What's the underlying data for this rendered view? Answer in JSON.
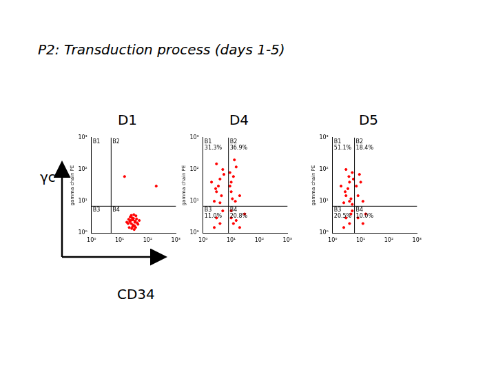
{
  "title": "P2: Transduction process (days 1-5)",
  "axis_arrows": {
    "y_label": "γc",
    "x_label": "CD34"
  },
  "chart_data": [
    {
      "type": "scatter",
      "title": "D1",
      "y_label": "gamma chain PE",
      "log": true,
      "grid": false,
      "color": "#ff0000",
      "marker": "circle",
      "xlim": [
        1,
        1000
      ],
      "ylim": [
        1,
        1000
      ],
      "xticks": [
        {
          "value": 1,
          "label": "10⁰"
        },
        {
          "value": 10,
          "label": "10¹"
        },
        {
          "value": 100,
          "label": "10²"
        },
        {
          "value": 1000,
          "label": "10³"
        }
      ],
      "yticks": [
        {
          "value": 1,
          "label": "10⁰"
        },
        {
          "value": 10,
          "label": "10¹"
        },
        {
          "value": 100,
          "label": "10²"
        },
        {
          "value": 1000,
          "label": "10³"
        }
      ],
      "gates": {
        "x": 5,
        "y": 7
      },
      "quadrants": [
        {
          "name": "B1"
        },
        {
          "name": "B2"
        },
        {
          "name": "B3"
        },
        {
          "name": "B4"
        }
      ],
      "x": [
        20,
        25,
        30,
        35,
        28,
        22,
        40,
        33,
        26,
        38,
        30,
        24,
        45,
        29,
        36,
        21,
        32,
        27,
        42,
        34,
        23,
        31,
        37,
        26,
        50,
        18,
        200,
        15
      ],
      "y": [
        2,
        2.5,
        1.8,
        2.2,
        3,
        1.5,
        2.8,
        1.3,
        2,
        3.5,
        2.6,
        3.2,
        1.9,
        1.6,
        2.4,
        2.7,
        3.8,
        1.4,
        2.1,
        1.7,
        2.3,
        2.9,
        1.5,
        3.6,
        2.5,
        2.2,
        30,
        60
      ]
    },
    {
      "type": "scatter",
      "title": "D4",
      "y_label": "gamma chain PE",
      "log": true,
      "grid": false,
      "color": "#ff0000",
      "marker": "circle",
      "xlim": [
        1,
        1000
      ],
      "ylim": [
        1,
        1000
      ],
      "xticks": [
        {
          "value": 1,
          "label": "10⁰"
        },
        {
          "value": 10,
          "label": "10¹"
        },
        {
          "value": 100,
          "label": "10²"
        },
        {
          "value": 1000,
          "label": "10³"
        }
      ],
      "yticks": [
        {
          "value": 1,
          "label": "10⁰"
        },
        {
          "value": 10,
          "label": "10¹"
        },
        {
          "value": 100,
          "label": "10²"
        },
        {
          "value": 1000,
          "label": "10³"
        }
      ],
      "gates": {
        "x": 8,
        "y": 7
      },
      "quadrants": [
        {
          "name": "B1",
          "value": 31.3,
          "label": "31.3%"
        },
        {
          "name": "B2",
          "value": 36.9,
          "label": "36.9%"
        },
        {
          "name": "B3",
          "value": 11.0,
          "label": "11.0%"
        },
        {
          "name": "B4",
          "value": 20.8,
          "label": "20.8%"
        }
      ],
      "x": [
        3,
        4,
        2.5,
        5,
        3.5,
        4.5,
        2,
        5.5,
        3,
        4,
        2.8,
        10,
        12,
        9,
        15,
        11,
        10,
        20,
        14,
        13,
        9,
        3,
        4,
        5,
        2.5,
        10,
        12,
        20,
        30,
        15,
        10
      ],
      "y": [
        20,
        50,
        10,
        100,
        30,
        15,
        40,
        70,
        150,
        9,
        25,
        20,
        60,
        30,
        120,
        12,
        40,
        15,
        10,
        200,
        80,
        3,
        2,
        5,
        1.5,
        3,
        2,
        1.5,
        4,
        2.5,
        5
      ]
    },
    {
      "type": "scatter",
      "title": "D5",
      "y_label": "gamma chain PE",
      "log": true,
      "grid": false,
      "color": "#ff0000",
      "marker": "circle",
      "xlim": [
        1,
        1000
      ],
      "ylim": [
        1,
        1000
      ],
      "xticks": [
        {
          "value": 1,
          "label": "10⁰"
        },
        {
          "value": 10,
          "label": "10¹"
        },
        {
          "value": 100,
          "label": "10²"
        },
        {
          "value": 1000,
          "label": "10³"
        }
      ],
      "yticks": [
        {
          "value": 1,
          "label": "10⁰"
        },
        {
          "value": 10,
          "label": "10¹"
        },
        {
          "value": 100,
          "label": "10²"
        },
        {
          "value": 1000,
          "label": "10³"
        }
      ],
      "gates": {
        "x": 6,
        "y": 7
      },
      "quadrants": [
        {
          "name": "B1",
          "value": 51.1,
          "label": "51.1%"
        },
        {
          "name": "B2",
          "value": 18.4,
          "label": "18.4%"
        },
        {
          "name": "B3",
          "value": 20.5,
          "label": "20.5%"
        },
        {
          "name": "B4",
          "value": 10.0,
          "label": "10.0%"
        }
      ],
      "x": [
        3,
        4,
        2.5,
        5,
        3.5,
        4.5,
        2,
        5.5,
        3,
        4,
        2.8,
        5,
        3.8,
        8,
        10,
        7,
        12,
        9,
        3,
        4,
        5,
        2.5,
        4.5,
        8,
        12,
        15
      ],
      "y": [
        15,
        40,
        9,
        80,
        25,
        12,
        30,
        50,
        100,
        10,
        20,
        8,
        60,
        15,
        40,
        30,
        10,
        70,
        3,
        2,
        5,
        1.5,
        4,
        3,
        2,
        4
      ]
    }
  ]
}
